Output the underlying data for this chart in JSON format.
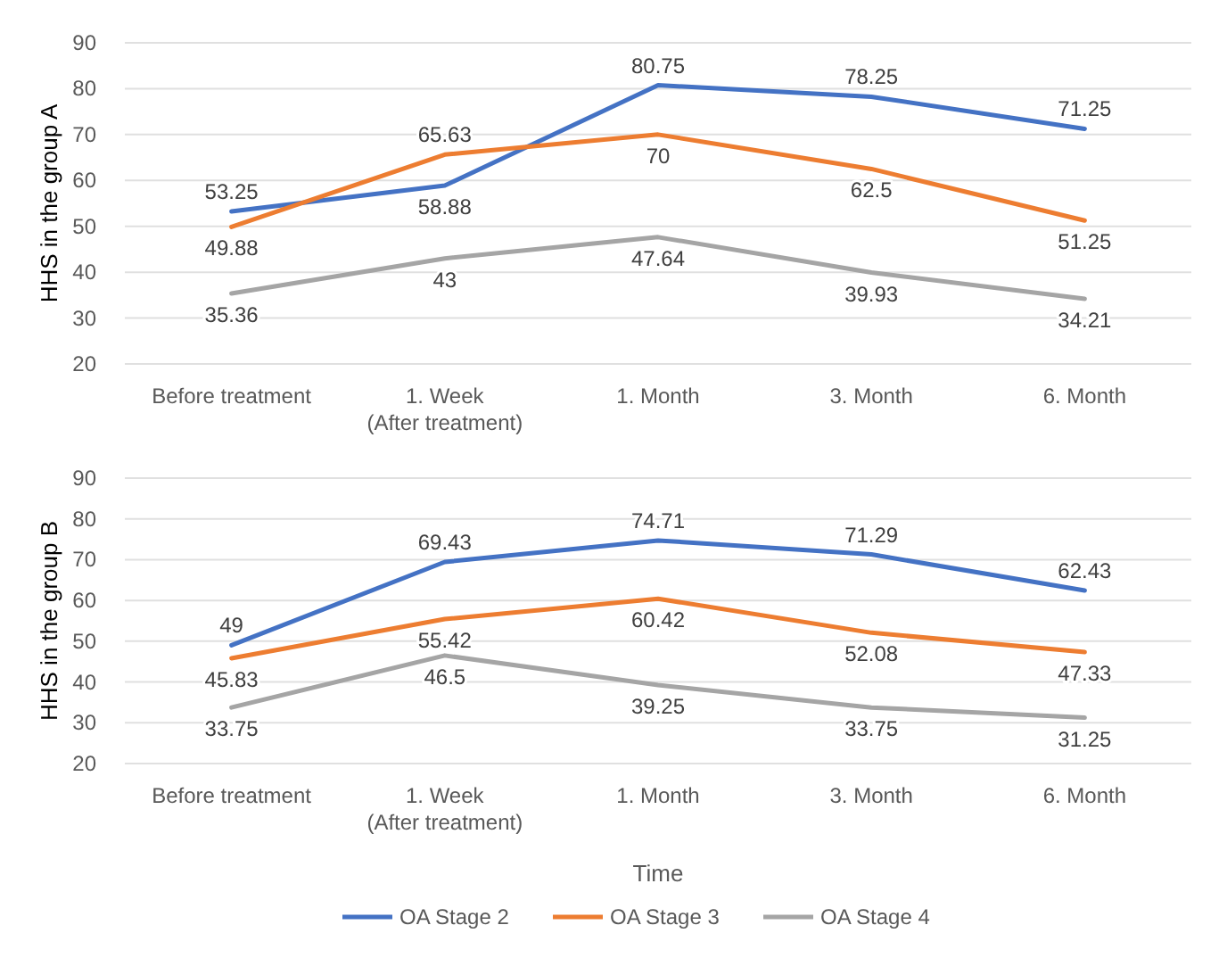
{
  "chart_data": [
    {
      "type": "line",
      "ylabel": "HHS in the group A",
      "categories": [
        "Before treatment",
        "1. Week\n(After treatment)",
        "1. Month",
        "3. Month",
        "6. Month"
      ],
      "series": [
        {
          "color": "#4472c4",
          "values": [
            53.25,
            58.88,
            80.75,
            78.25,
            71.25
          ]
        },
        {
          "color": "#ed7d31",
          "values": [
            49.88,
            65.63,
            70,
            62.5,
            51.25
          ]
        },
        {
          "color": "#a5a5a5",
          "values": [
            35.36,
            43,
            47.64,
            39.93,
            34.21
          ]
        }
      ],
      "ylim": [
        20,
        90
      ],
      "yticks": [
        20,
        30,
        40,
        50,
        60,
        70,
        80,
        90
      ],
      "grid": "y",
      "data_labels": true,
      "legend": false,
      "marker": "none"
    },
    {
      "type": "line",
      "ylabel": "HHS in the group B",
      "xlabel": "Time",
      "categories": [
        "Before treatment",
        "1. Week\n(After treatment)",
        "1. Month",
        "3. Month",
        "6. Month"
      ],
      "series": [
        {
          "name": "OA Stage 2",
          "color": "#4472c4",
          "values": [
            49,
            69.43,
            74.71,
            71.29,
            62.43
          ]
        },
        {
          "name": "OA Stage 3",
          "color": "#ed7d31",
          "values": [
            45.83,
            55.42,
            60.42,
            52.08,
            47.33
          ]
        },
        {
          "name": "OA Stage 4",
          "color": "#a5a5a5",
          "values": [
            33.75,
            46.5,
            39.25,
            33.75,
            31.25
          ]
        }
      ],
      "ylim": [
        20,
        90
      ],
      "yticks": [
        20,
        30,
        40,
        50,
        60,
        70,
        80,
        90
      ],
      "grid": "y",
      "data_labels": true,
      "legend": "bottom",
      "marker": "none"
    }
  ]
}
